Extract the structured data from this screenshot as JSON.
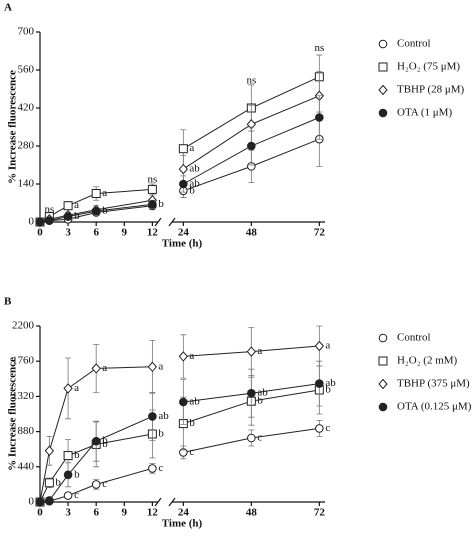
{
  "chart_data": [
    {
      "type": "line",
      "panel_label": "A",
      "xlabel": "Time (h)",
      "ylabel": "% Increase fluorescence",
      "x": [
        0,
        1,
        3,
        6,
        12,
        24,
        48,
        72
      ],
      "xsegments": [
        {
          "xlim": [
            0,
            12.6
          ],
          "xticks": [
            0,
            3,
            6,
            9,
            12
          ]
        },
        {
          "xlim": [
            20,
            74
          ],
          "xticks": [
            24,
            48,
            72
          ]
        }
      ],
      "ylim": [
        0,
        700
      ],
      "yticks": [
        0,
        140,
        280,
        420,
        560,
        700
      ],
      "series": [
        {
          "name": "Control",
          "marker": "open-circle",
          "color": "#222222",
          "values": [
            0,
            5,
            10,
            35,
            60,
            115,
            205,
            305
          ],
          "errors": [
            0,
            5,
            8,
            10,
            15,
            25,
            60,
            100
          ],
          "point_labels": [
            null,
            null,
            null,
            null,
            null,
            "b",
            null,
            null
          ]
        },
        {
          "name": "H₂O₂ (75 μM)",
          "marker": "open-square",
          "color": "#222222",
          "values": [
            0,
            20,
            60,
            105,
            120,
            270,
            420,
            535
          ],
          "errors": [
            0,
            10,
            15,
            25,
            20,
            70,
            85,
            80
          ],
          "point_labels": [
            null,
            null,
            "a",
            "a",
            null,
            "a",
            null,
            null
          ]
        },
        {
          "name": "TBHP (28 μM)",
          "marker": "open-diamond",
          "color": "#222222",
          "values": [
            0,
            10,
            25,
            45,
            80,
            195,
            360,
            465
          ],
          "errors": [
            0,
            8,
            10,
            15,
            20,
            50,
            70,
            90
          ],
          "point_labels": [
            null,
            null,
            null,
            null,
            null,
            "ab",
            null,
            null
          ]
        },
        {
          "name": "OTA (1 μM)",
          "marker": "filled-circle",
          "color": "#222222",
          "values": [
            0,
            5,
            20,
            40,
            65,
            140,
            280,
            385
          ],
          "errors": [
            0,
            5,
            8,
            12,
            15,
            30,
            70,
            80
          ],
          "point_labels": [
            null,
            null,
            "b",
            "b",
            "b",
            "ab",
            null,
            null
          ]
        }
      ],
      "annotations": [
        {
          "text": "ns",
          "x": 1,
          "y": 45
        },
        {
          "text": "ns",
          "x": 12,
          "y": 155
        },
        {
          "text": "ns",
          "x": 48,
          "y": 520
        },
        {
          "text": "ns",
          "x": 72,
          "y": 640
        }
      ]
    },
    {
      "type": "line",
      "panel_label": "B",
      "xlabel": "Time (h)",
      "ylabel": "% Increase fluorescence",
      "x": [
        0,
        1,
        3,
        6,
        12,
        24,
        48,
        72
      ],
      "xsegments": [
        {
          "xlim": [
            0,
            12.6
          ],
          "xticks": [
            0,
            3,
            6,
            9,
            12
          ]
        },
        {
          "xlim": [
            20,
            74
          ],
          "xticks": [
            24,
            48,
            72
          ]
        }
      ],
      "ylim": [
        0,
        2200
      ],
      "yticks": [
        0,
        440,
        880,
        1320,
        1760,
        2200
      ],
      "series": [
        {
          "name": "Control",
          "marker": "open-circle",
          "color": "#222222",
          "values": [
            0,
            10,
            80,
            220,
            420,
            620,
            800,
            920
          ],
          "errors": [
            0,
            5,
            30,
            60,
            60,
            80,
            100,
            100
          ],
          "point_labels": [
            null,
            null,
            "c",
            "c",
            "c",
            "c",
            "c",
            "c"
          ]
        },
        {
          "name": "H₂O₂ (2 mM)",
          "marker": "open-square",
          "color": "#222222",
          "values": [
            0,
            240,
            580,
            720,
            850,
            980,
            1260,
            1400
          ],
          "errors": [
            0,
            60,
            200,
            280,
            300,
            330,
            300,
            300
          ],
          "point_labels": [
            null,
            "b",
            "b",
            "b",
            "b",
            "b",
            "b",
            "b"
          ]
        },
        {
          "name": "TBHP (375 μM)",
          "marker": "open-diamond",
          "color": "#222222",
          "values": [
            0,
            640,
            1420,
            1670,
            1690,
            1820,
            1880,
            1950
          ],
          "errors": [
            0,
            180,
            380,
            300,
            330,
            270,
            300,
            250
          ],
          "point_labels": [
            null,
            null,
            "a",
            "a",
            "a",
            "a",
            "a",
            "a"
          ]
        },
        {
          "name": "OTA (0.125 μM)",
          "marker": "filled-circle",
          "color": "#222222",
          "values": [
            0,
            20,
            340,
            760,
            1070,
            1250,
            1360,
            1480
          ],
          "errors": [
            0,
            20,
            150,
            250,
            300,
            280,
            300,
            280
          ],
          "point_labels": [
            null,
            null,
            "b",
            "b",
            "ab",
            "ab",
            "ab",
            "ab"
          ]
        }
      ]
    }
  ]
}
